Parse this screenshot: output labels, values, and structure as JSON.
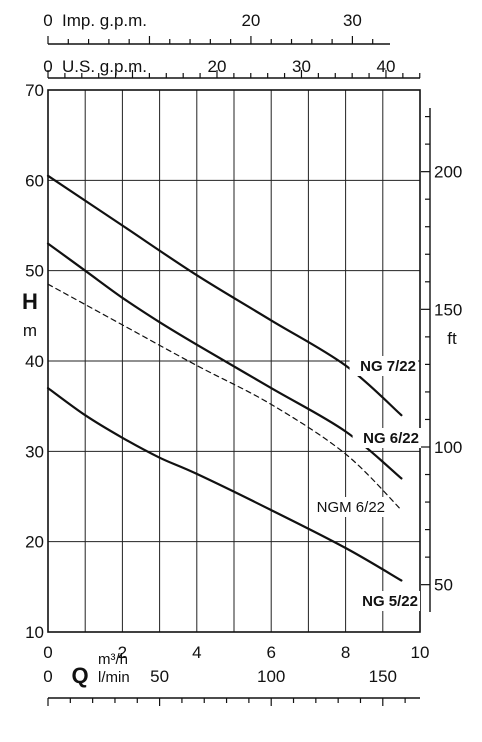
{
  "chart_data": {
    "type": "line",
    "x_axis": {
      "label_symbol": "Q",
      "unit": "m³/h",
      "range": [
        0,
        10
      ],
      "ticks": [
        0,
        2,
        4,
        6,
        8,
        10
      ],
      "tick_labels": [
        "0",
        "2",
        "4",
        "6",
        "8",
        "10"
      ]
    },
    "x_axis_lpm": {
      "unit": "l/min",
      "ticks": [
        0,
        50,
        100,
        150
      ],
      "tick_labels": [
        "0",
        "50",
        "100",
        "150"
      ]
    },
    "x_axis_imp": {
      "unit": "Imp. g.p.m.",
      "ticks": [
        0,
        20,
        30
      ],
      "tick_labels": [
        "0",
        "20",
        "30"
      ]
    },
    "x_axis_us": {
      "unit": "U.S. g.p.m.",
      "ticks": [
        0,
        20,
        30,
        40
      ],
      "tick_labels": [
        "0",
        "20",
        "30",
        "40"
      ]
    },
    "y_axis": {
      "symbol": "H",
      "unit": "m",
      "range": [
        10,
        70
      ],
      "ticks": [
        10,
        20,
        30,
        40,
        50,
        60,
        70
      ],
      "tick_labels": [
        "10",
        "20",
        "30",
        "40",
        "50",
        "60",
        "70"
      ]
    },
    "y_axis_right": {
      "unit": "ft",
      "ticks": [
        50,
        100,
        150,
        200
      ],
      "tick_labels": [
        "50",
        "100",
        "150",
        "200"
      ]
    },
    "grid": true,
    "series": [
      {
        "name": "NG 7/22",
        "style": "solid",
        "points": [
          [
            0,
            60.5
          ],
          [
            2,
            55.0
          ],
          [
            4,
            49.5
          ],
          [
            6,
            44.5
          ],
          [
            8,
            39.5
          ],
          [
            9.5,
            34.0
          ]
        ]
      },
      {
        "name": "NG 6/22",
        "style": "solid",
        "points": [
          [
            0,
            53.0
          ],
          [
            1,
            50.0
          ],
          [
            2,
            47.0
          ],
          [
            3,
            44.3
          ],
          [
            4,
            41.8
          ],
          [
            6,
            37.0
          ],
          [
            8,
            32.2
          ],
          [
            9.5,
            27.0
          ]
        ]
      },
      {
        "name": "NGM 6/22",
        "style": "dashed",
        "points": [
          [
            0,
            48.5
          ],
          [
            2,
            44.0
          ],
          [
            4,
            39.5
          ],
          [
            6,
            35.2
          ],
          [
            8,
            29.7
          ],
          [
            9.5,
            23.5
          ]
        ]
      },
      {
        "name": "NG 5/22",
        "style": "solid",
        "points": [
          [
            0,
            37.0
          ],
          [
            1,
            34.0
          ],
          [
            2,
            31.5
          ],
          [
            3,
            29.3
          ],
          [
            4,
            27.5
          ],
          [
            6,
            23.5
          ],
          [
            8,
            19.3
          ],
          [
            9.5,
            15.7
          ]
        ]
      }
    ]
  }
}
